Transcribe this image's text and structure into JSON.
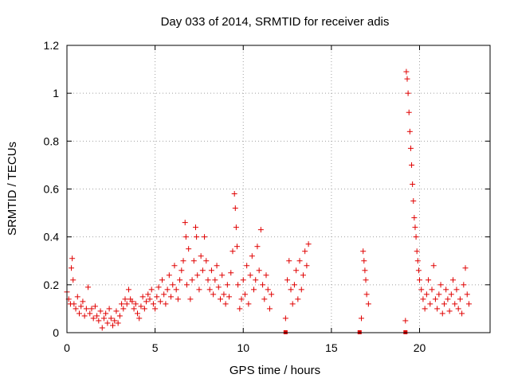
{
  "chart_data": {
    "type": "scatter",
    "title": "Day 033 of 2014, SRMTID for receiver adis",
    "xlabel": "GPS time / hours",
    "ylabel": "SRMTID / TECUs",
    "xlim": [
      0,
      24
    ],
    "ylim": [
      0,
      1.2
    ],
    "grid": true,
    "marker": "plus",
    "color": "#e00000",
    "x_ticks": [
      0,
      5,
      10,
      15,
      20
    ],
    "x_tick_labels": [
      "0",
      "5",
      "10",
      "15",
      "20"
    ],
    "y_ticks": [
      0,
      0.2,
      0.4,
      0.6,
      0.8,
      1.0,
      1.2
    ],
    "y_tick_labels": [
      "0",
      "0.2",
      "0.4",
      "0.6",
      "0.8",
      "1",
      "1.2"
    ],
    "series": [
      {
        "name": "SRMTID",
        "points": [
          [
            0.0,
            0.17
          ],
          [
            0.1,
            0.14
          ],
          [
            0.2,
            0.12
          ],
          [
            0.25,
            0.27
          ],
          [
            0.3,
            0.31
          ],
          [
            0.35,
            0.22
          ],
          [
            0.4,
            0.12
          ],
          [
            0.5,
            0.1
          ],
          [
            0.6,
            0.15
          ],
          [
            0.7,
            0.08
          ],
          [
            0.8,
            0.11
          ],
          [
            0.9,
            0.13
          ],
          [
            1.0,
            0.07
          ],
          [
            1.1,
            0.1
          ],
          [
            1.2,
            0.19
          ],
          [
            1.3,
            0.08
          ],
          [
            1.4,
            0.1
          ],
          [
            1.5,
            0.06
          ],
          [
            1.6,
            0.11
          ],
          [
            1.7,
            0.07
          ],
          [
            1.8,
            0.05
          ],
          [
            1.9,
            0.09
          ],
          [
            2.0,
            0.02
          ],
          [
            2.1,
            0.06
          ],
          [
            2.2,
            0.08
          ],
          [
            2.3,
            0.04
          ],
          [
            2.4,
            0.1
          ],
          [
            2.5,
            0.06
          ],
          [
            2.6,
            0.03
          ],
          [
            2.7,
            0.05
          ],
          [
            2.8,
            0.09
          ],
          [
            2.9,
            0.04
          ],
          [
            3.0,
            0.07
          ],
          [
            3.1,
            0.12
          ],
          [
            3.2,
            0.1
          ],
          [
            3.3,
            0.14
          ],
          [
            3.4,
            0.12
          ],
          [
            3.5,
            0.18
          ],
          [
            3.6,
            0.14
          ],
          [
            3.7,
            0.13
          ],
          [
            3.8,
            0.1
          ],
          [
            3.9,
            0.12
          ],
          [
            4.0,
            0.08
          ],
          [
            4.1,
            0.06
          ],
          [
            4.2,
            0.11
          ],
          [
            4.3,
            0.15
          ],
          [
            4.4,
            0.1
          ],
          [
            4.5,
            0.13
          ],
          [
            4.6,
            0.16
          ],
          [
            4.7,
            0.14
          ],
          [
            4.8,
            0.18
          ],
          [
            4.9,
            0.12
          ],
          [
            5.0,
            0.1
          ],
          [
            5.1,
            0.15
          ],
          [
            5.2,
            0.19
          ],
          [
            5.3,
            0.13
          ],
          [
            5.4,
            0.22
          ],
          [
            5.5,
            0.16
          ],
          [
            5.6,
            0.12
          ],
          [
            5.7,
            0.18
          ],
          [
            5.8,
            0.24
          ],
          [
            5.9,
            0.15
          ],
          [
            6.0,
            0.2
          ],
          [
            6.1,
            0.28
          ],
          [
            6.2,
            0.18
          ],
          [
            6.3,
            0.14
          ],
          [
            6.4,
            0.22
          ],
          [
            6.5,
            0.26
          ],
          [
            6.6,
            0.3
          ],
          [
            6.7,
            0.46
          ],
          [
            6.75,
            0.4
          ],
          [
            6.8,
            0.2
          ],
          [
            6.9,
            0.35
          ],
          [
            7.0,
            0.14
          ],
          [
            7.1,
            0.22
          ],
          [
            7.2,
            0.3
          ],
          [
            7.3,
            0.44
          ],
          [
            7.35,
            0.4
          ],
          [
            7.4,
            0.24
          ],
          [
            7.5,
            0.18
          ],
          [
            7.6,
            0.32
          ],
          [
            7.7,
            0.26
          ],
          [
            7.8,
            0.4
          ],
          [
            7.9,
            0.3
          ],
          [
            8.0,
            0.22
          ],
          [
            8.1,
            0.18
          ],
          [
            8.2,
            0.26
          ],
          [
            8.3,
            0.16
          ],
          [
            8.4,
            0.22
          ],
          [
            8.5,
            0.28
          ],
          [
            8.6,
            0.19
          ],
          [
            8.7,
            0.14
          ],
          [
            8.8,
            0.24
          ],
          [
            8.9,
            0.16
          ],
          [
            9.0,
            0.12
          ],
          [
            9.1,
            0.2
          ],
          [
            9.2,
            0.15
          ],
          [
            9.3,
            0.25
          ],
          [
            9.4,
            0.34
          ],
          [
            9.5,
            0.58
          ],
          [
            9.55,
            0.52
          ],
          [
            9.6,
            0.44
          ],
          [
            9.65,
            0.36
          ],
          [
            9.7,
            0.2
          ],
          [
            9.8,
            0.1
          ],
          [
            9.9,
            0.14
          ],
          [
            10.0,
            0.22
          ],
          [
            10.1,
            0.16
          ],
          [
            10.2,
            0.28
          ],
          [
            10.3,
            0.12
          ],
          [
            10.4,
            0.24
          ],
          [
            10.5,
            0.32
          ],
          [
            10.6,
            0.18
          ],
          [
            10.7,
            0.22
          ],
          [
            10.8,
            0.36
          ],
          [
            10.9,
            0.26
          ],
          [
            11.0,
            0.43
          ],
          [
            11.1,
            0.2
          ],
          [
            11.2,
            0.14
          ],
          [
            11.3,
            0.24
          ],
          [
            11.4,
            0.18
          ],
          [
            11.5,
            0.1
          ],
          [
            11.6,
            0.16
          ],
          [
            12.4,
            0.06
          ],
          [
            12.5,
            0.22
          ],
          [
            12.6,
            0.3
          ],
          [
            12.7,
            0.18
          ],
          [
            12.8,
            0.12
          ],
          [
            12.9,
            0.2
          ],
          [
            13.0,
            0.26
          ],
          [
            13.1,
            0.14
          ],
          [
            13.2,
            0.3
          ],
          [
            13.3,
            0.18
          ],
          [
            13.4,
            0.24
          ],
          [
            13.5,
            0.34
          ],
          [
            13.6,
            0.28
          ],
          [
            13.7,
            0.37
          ],
          [
            16.7,
            0.06
          ],
          [
            16.8,
            0.34
          ],
          [
            16.85,
            0.3
          ],
          [
            16.9,
            0.26
          ],
          [
            16.95,
            0.22
          ],
          [
            17.0,
            0.16
          ],
          [
            17.1,
            0.12
          ],
          [
            19.2,
            0.05
          ],
          [
            19.25,
            1.09
          ],
          [
            19.3,
            1.06
          ],
          [
            19.35,
            1.0
          ],
          [
            19.4,
            0.92
          ],
          [
            19.45,
            0.84
          ],
          [
            19.5,
            0.77
          ],
          [
            19.55,
            0.7
          ],
          [
            19.6,
            0.62
          ],
          [
            19.65,
            0.55
          ],
          [
            19.7,
            0.48
          ],
          [
            19.75,
            0.44
          ],
          [
            19.8,
            0.4
          ],
          [
            19.85,
            0.34
          ],
          [
            19.9,
            0.3
          ],
          [
            19.95,
            0.26
          ],
          [
            20.0,
            0.22
          ],
          [
            20.1,
            0.18
          ],
          [
            20.2,
            0.14
          ],
          [
            20.3,
            0.1
          ],
          [
            20.4,
            0.16
          ],
          [
            20.5,
            0.22
          ],
          [
            20.6,
            0.12
          ],
          [
            20.7,
            0.18
          ],
          [
            20.8,
            0.28
          ],
          [
            20.9,
            0.14
          ],
          [
            21.0,
            0.1
          ],
          [
            21.1,
            0.16
          ],
          [
            21.2,
            0.2
          ],
          [
            21.3,
            0.08
          ],
          [
            21.4,
            0.12
          ],
          [
            21.5,
            0.18
          ],
          [
            21.6,
            0.14
          ],
          [
            21.7,
            0.09
          ],
          [
            21.8,
            0.16
          ],
          [
            21.9,
            0.22
          ],
          [
            22.0,
            0.12
          ],
          [
            22.1,
            0.18
          ],
          [
            22.2,
            0.1
          ],
          [
            22.3,
            0.14
          ],
          [
            22.4,
            0.08
          ],
          [
            22.5,
            0.2
          ],
          [
            22.6,
            0.27
          ],
          [
            22.7,
            0.16
          ],
          [
            22.8,
            0.12
          ]
        ]
      }
    ],
    "zero_markers": [
      12.4,
      16.6,
      19.2
    ]
  }
}
